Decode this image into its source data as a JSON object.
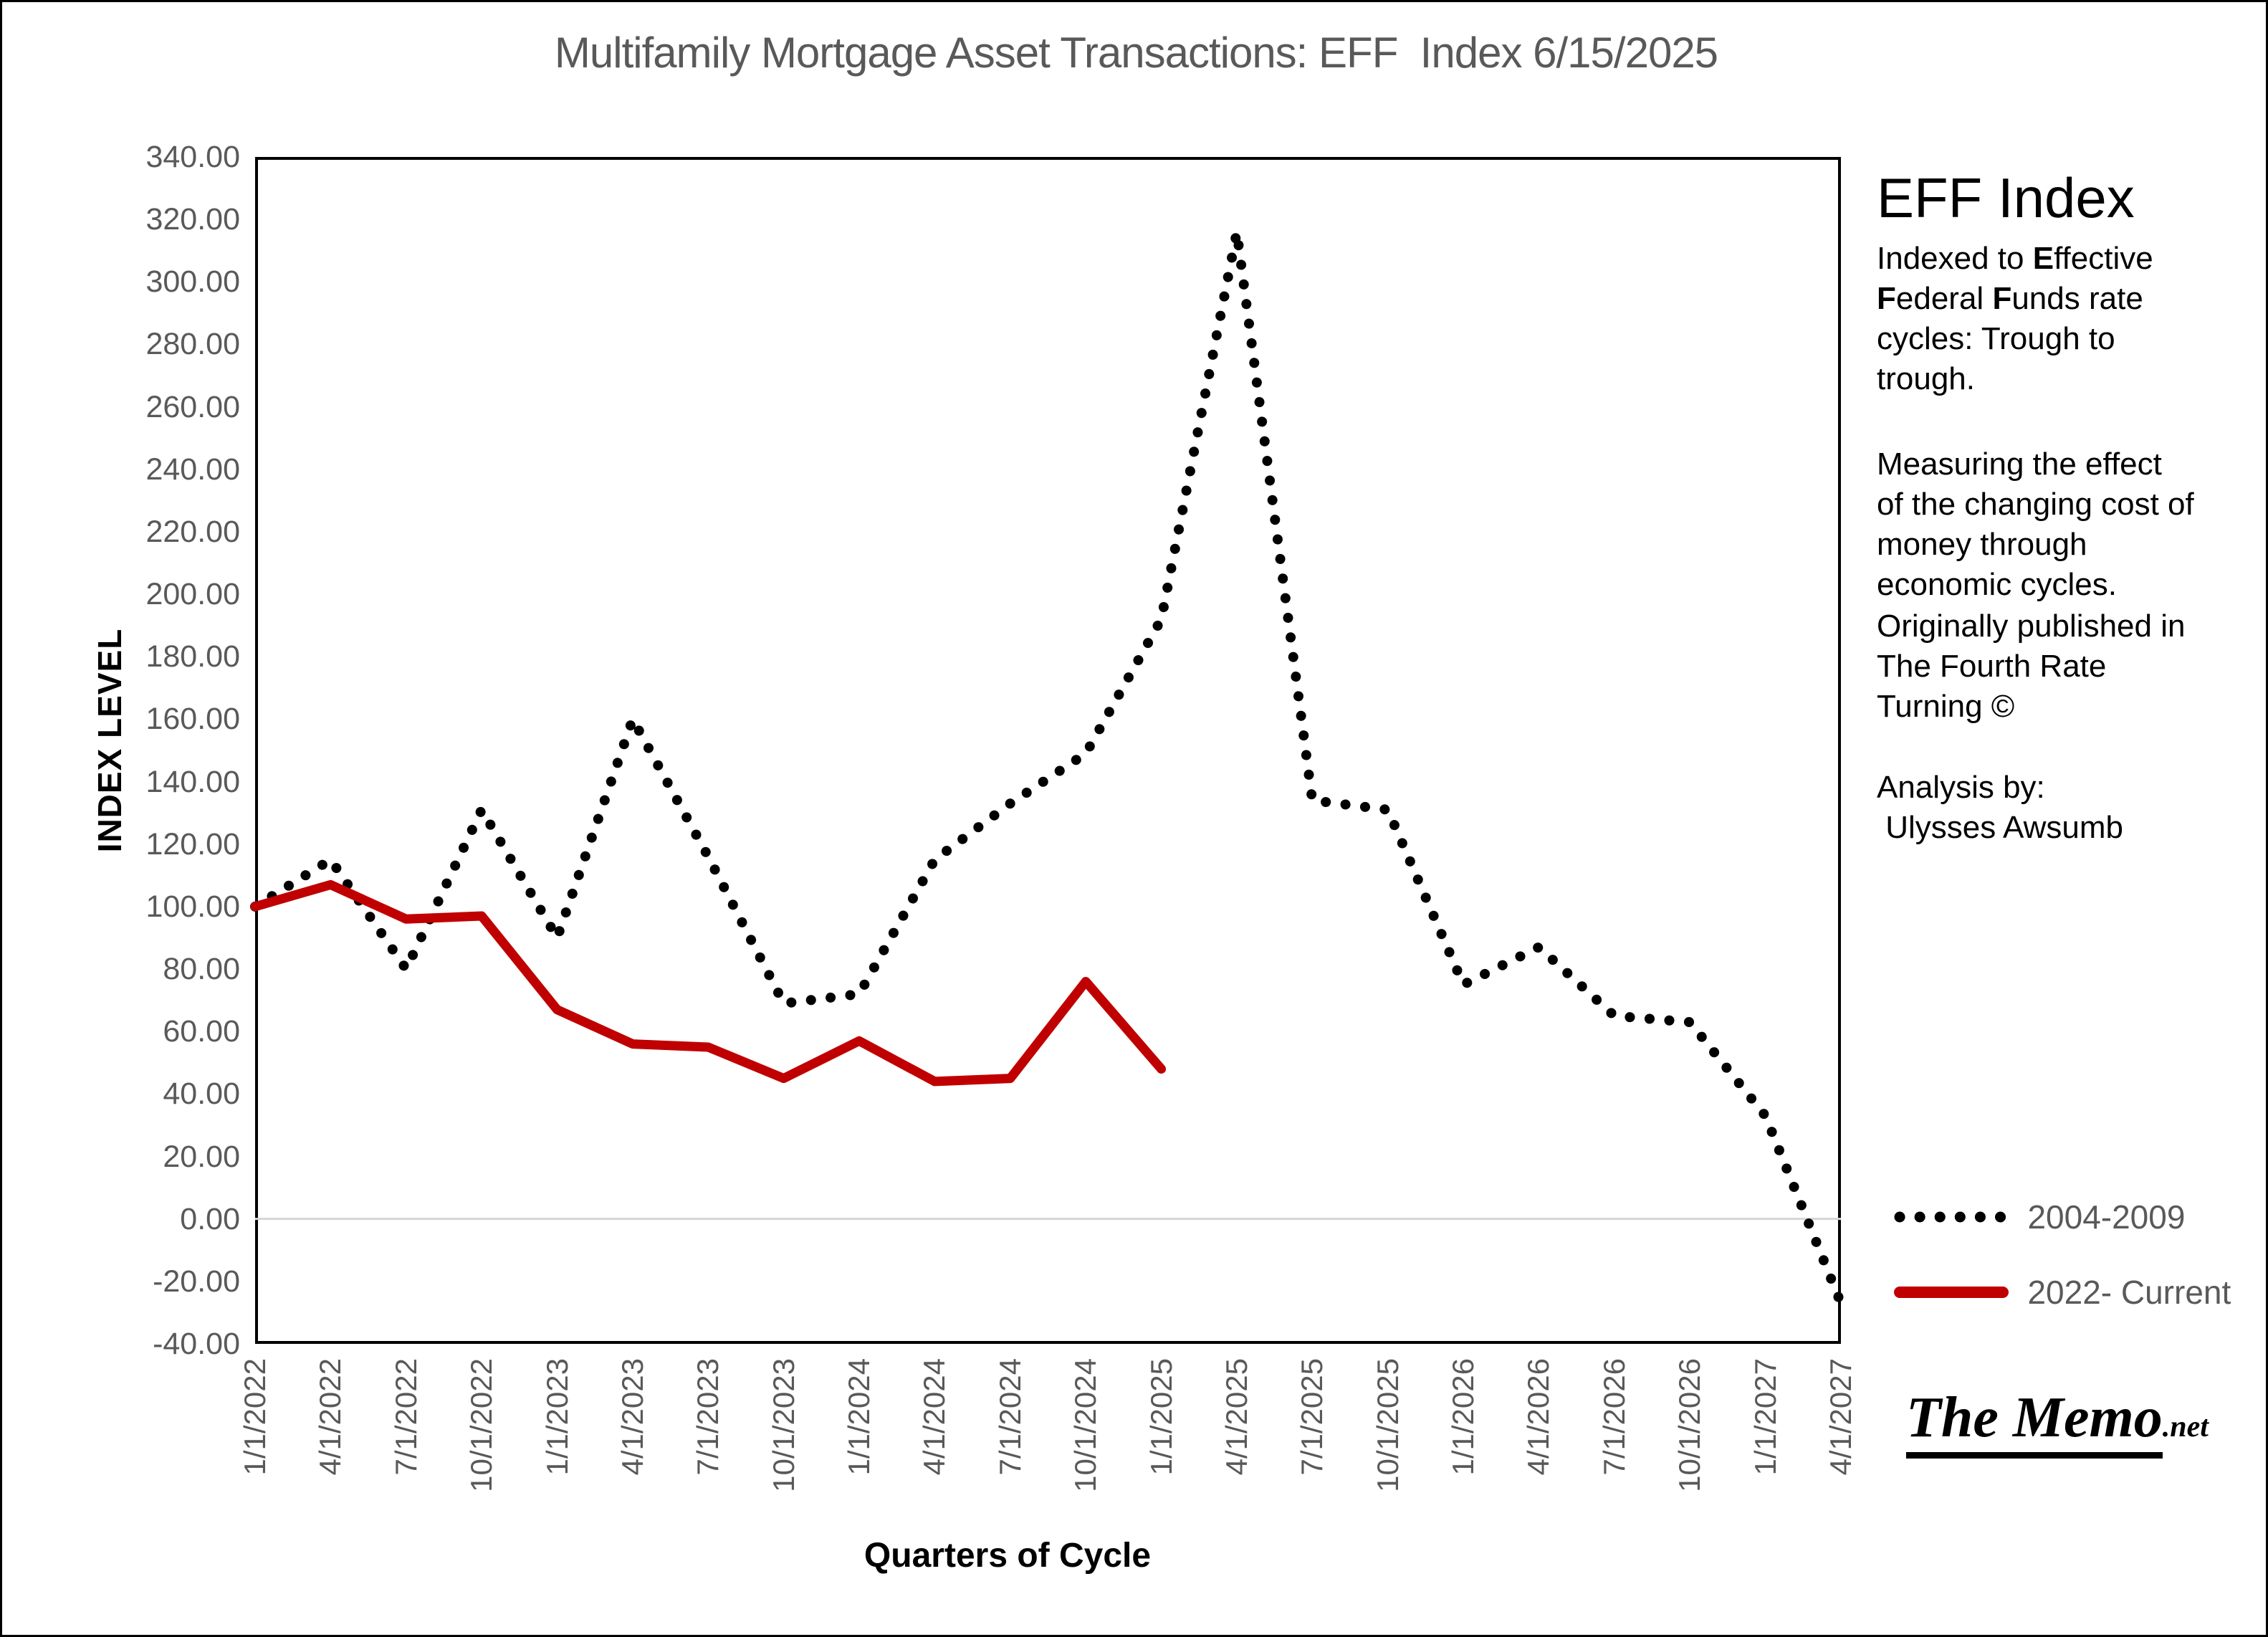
{
  "title": "Multifamily Mortgage Asset Transactions: EFF  Index 6/15/2025",
  "chart_data": {
    "type": "line",
    "title": "Multifamily Mortgage Asset Transactions: EFF  Index 6/15/2025",
    "xlabel": "Quarters of Cycle",
    "ylabel": "INDEX LEVEL",
    "ylim": [
      -40,
      340
    ],
    "ytick_step": 20,
    "ytick_format": "two_decimals",
    "grid": "zero-line-only",
    "zero_line_color": "#d6d6d6",
    "legend_position": "right-bottom",
    "categories": [
      "1/1/2022",
      "4/1/2022",
      "7/1/2022",
      "10/1/2022",
      "1/1/2023",
      "4/1/2023",
      "7/1/2023",
      "10/1/2023",
      "1/1/2024",
      "4/1/2024",
      "7/1/2024",
      "10/1/2024",
      "1/1/2025",
      "4/1/2025",
      "7/1/2025",
      "10/1/2025",
      "1/1/2026",
      "4/1/2026",
      "7/1/2026",
      "10/1/2026",
      "1/1/2027",
      "4/1/2027"
    ],
    "series": [
      {
        "name": "2004-2009",
        "color": "#000000",
        "style": "dotted",
        "values": [
          100,
          115,
          80,
          131,
          90,
          160,
          116,
          69,
          72,
          115,
          133,
          149,
          192,
          316,
          134,
          131,
          75,
          87,
          65,
          63,
          33,
          -27
        ]
      },
      {
        "name": "2022- Current",
        "color": "#c00000",
        "style": "solid",
        "values": [
          100,
          107,
          96,
          97,
          67,
          56,
          55,
          45,
          57,
          44,
          45,
          76,
          48
        ]
      }
    ]
  },
  "side_panel": {
    "heading": "EFF Index",
    "paragraphs": [
      [
        [
          {
            "t": "Indexed to "
          },
          {
            "t": "E",
            "b": true
          },
          {
            "t": "ffective"
          }
        ],
        [
          {
            "t": "F",
            "b": true
          },
          {
            "t": "ederal "
          },
          {
            "t": "F",
            "b": true
          },
          {
            "t": "unds rate"
          }
        ],
        [
          {
            "t": "cycles: Trough to"
          }
        ],
        [
          {
            "t": "trough."
          }
        ]
      ],
      [
        [
          {
            "t": "Measuring the effect"
          }
        ],
        [
          {
            "t": "of the changing cost of"
          }
        ],
        [
          {
            "t": "money through"
          }
        ],
        [
          {
            "t": "economic cycles."
          }
        ]
      ],
      [
        [
          {
            "t": "Originally published in"
          }
        ],
        [
          {
            "t": "The Fourth Rate"
          }
        ],
        [
          {
            "t": "Turning ©"
          }
        ]
      ],
      [
        [
          {
            "t": "Analysis by:"
          }
        ],
        [
          {
            "t": " Ulysses Awsumb"
          }
        ]
      ]
    ]
  },
  "logo": {
    "main": "The Memo",
    "suffix": ".net"
  }
}
